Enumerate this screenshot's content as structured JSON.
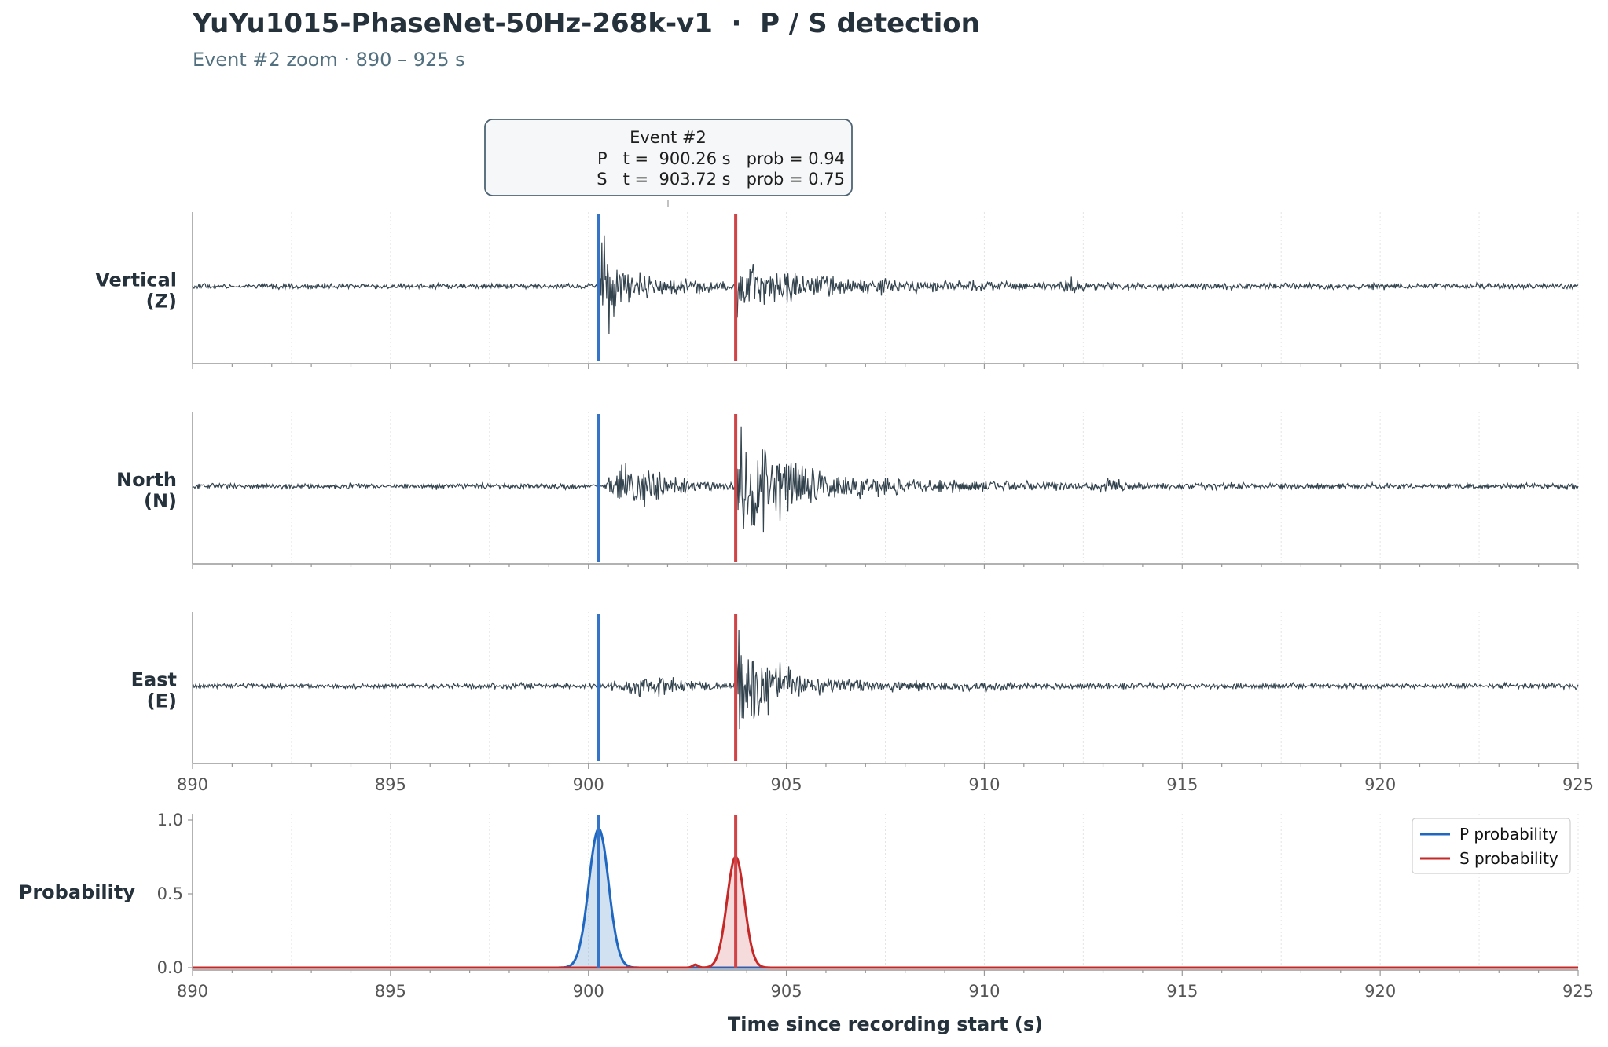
{
  "title": "YuYu1015-PhaseNet-50Hz-268k-v1  ·  P / S detection",
  "subtitle": "Event #2 zoom · 890 – 925 s",
  "colors": {
    "p": "#1f67c0",
    "s": "#c62828",
    "p_line": "#3574c8",
    "s_line": "#d04346",
    "trace": "#34444f",
    "axis": "#999999",
    "text": "#25313b",
    "tick_text": "#555555"
  },
  "chart_data": {
    "type": "line",
    "xlabel": "Time since recording start (s)",
    "xlim": [
      890,
      925
    ],
    "xticks": [
      890,
      895,
      900,
      905,
      910,
      915,
      920,
      925
    ],
    "grid": true,
    "annotation": {
      "title": "Event #2",
      "lines": [
        "P   t =  900.26 s   prob = 0.94",
        "S   t =  903.72 s   prob = 0.75"
      ]
    },
    "picks": [
      {
        "phase": "P",
        "t": 900.26,
        "prob": 0.94
      },
      {
        "phase": "S",
        "t": 903.72,
        "prob": 0.75
      }
    ],
    "waveform_panels": [
      {
        "label": "Vertical\n(Z)",
        "component": "Z"
      },
      {
        "label": "North\n(N)",
        "component": "N"
      },
      {
        "label": "East\n(E)",
        "component": "E"
      }
    ],
    "probability_panel": {
      "ylabel": "Probability",
      "ylim": [
        0,
        1.0
      ],
      "yticks": [
        0.0,
        0.5,
        1.0
      ],
      "ytick_labels": [
        "0.0",
        "0.5",
        "1.0"
      ],
      "legend_position": "top-right",
      "series": [
        {
          "name": "P probability",
          "peak_t": 900.26,
          "peak": 0.94,
          "width_s": 0.25
        },
        {
          "name": "S probability",
          "peak_t": 903.72,
          "peak": 0.75,
          "width_s": 0.22
        }
      ]
    }
  }
}
